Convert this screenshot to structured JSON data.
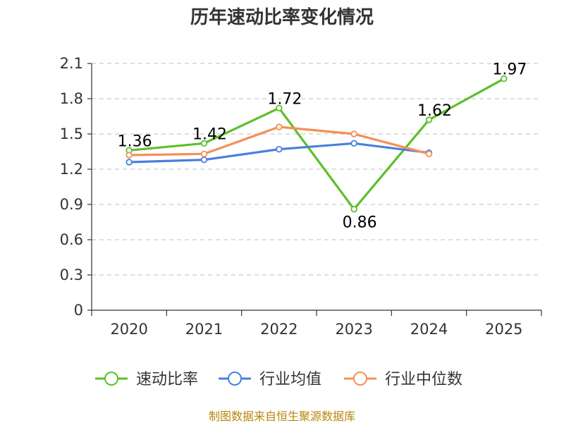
{
  "chart_data": {
    "type": "line",
    "title": "历年速动比率变化情况",
    "categories": [
      "2020",
      "2021",
      "2022",
      "2023",
      "2024",
      "2025"
    ],
    "yticks": [
      "0",
      "0.3",
      "0.6",
      "0.9",
      "1.2",
      "1.5",
      "1.8",
      "2.1"
    ],
    "ylim": [
      0,
      2.1
    ],
    "grid": true,
    "legend_position": "bottom",
    "series": [
      {
        "name": "速动比率",
        "color": "#5cbf2a",
        "values": [
          1.36,
          1.42,
          1.72,
          0.86,
          1.62,
          1.97
        ],
        "labels": [
          "1.36",
          "1.42",
          "1.72",
          "0.86",
          "1.62",
          "1.97"
        ]
      },
      {
        "name": "行业均值",
        "color": "#4a7fdc",
        "values": [
          1.26,
          1.28,
          1.37,
          1.42,
          1.34,
          null
        ]
      },
      {
        "name": "行业中位数",
        "color": "#f4905a",
        "values": [
          1.32,
          1.33,
          1.56,
          1.5,
          1.33,
          null
        ]
      }
    ]
  },
  "source_text": "制图数据来自恒生聚源数据库"
}
